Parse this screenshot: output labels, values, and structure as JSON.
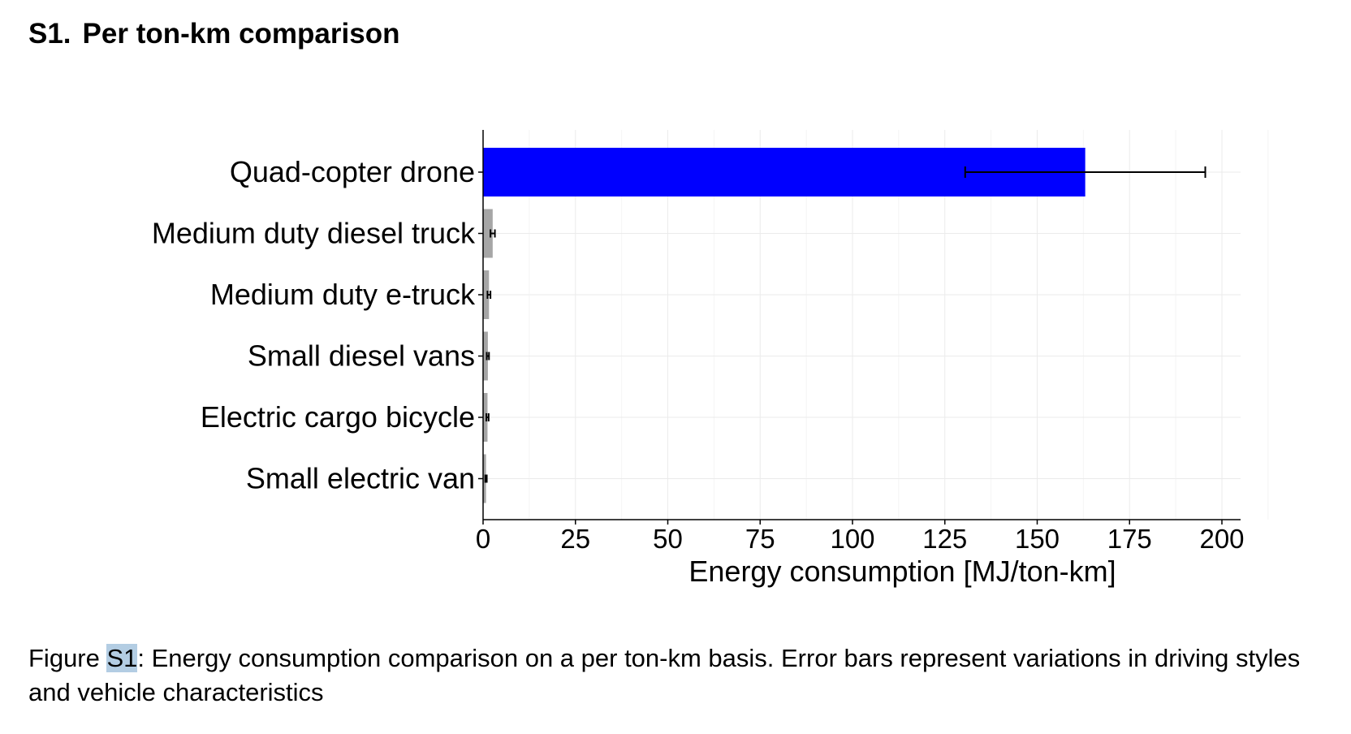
{
  "heading": {
    "number": "S1.",
    "text": "Per ton-km comparison"
  },
  "chart_data": {
    "type": "bar",
    "orientation": "horizontal",
    "categories": [
      "Quad-copter drone",
      "Medium duty diesel truck",
      "Medium duty e-truck",
      "Small diesel vans",
      "Electric cargo bicycle",
      "Small electric van"
    ],
    "values": [
      163,
      2.6,
      1.6,
      1.3,
      1.2,
      0.8
    ],
    "error_low": [
      130.5,
      2.0,
      1.2,
      1.0,
      0.9,
      0.6
    ],
    "error_high": [
      195.5,
      3.2,
      2.0,
      1.6,
      1.5,
      1.0
    ],
    "colors": [
      "#0000ff",
      "#a6a6a6",
      "#a6a6a6",
      "#a6a6a6",
      "#a6a6a6",
      "#a6a6a6"
    ],
    "xlabel": "Energy consumption [MJ/ton-km]",
    "ylabel": "",
    "xlim": [
      0,
      205
    ],
    "xticks": [
      0,
      25,
      50,
      75,
      100,
      125,
      150,
      175,
      200
    ],
    "grid": true
  },
  "caption": {
    "prefix": "Figure ",
    "ref": "S1",
    "text": ": Energy consumption comparison on a per ton-km basis. Error bars represent variations in driving styles and vehicle characteristics"
  }
}
